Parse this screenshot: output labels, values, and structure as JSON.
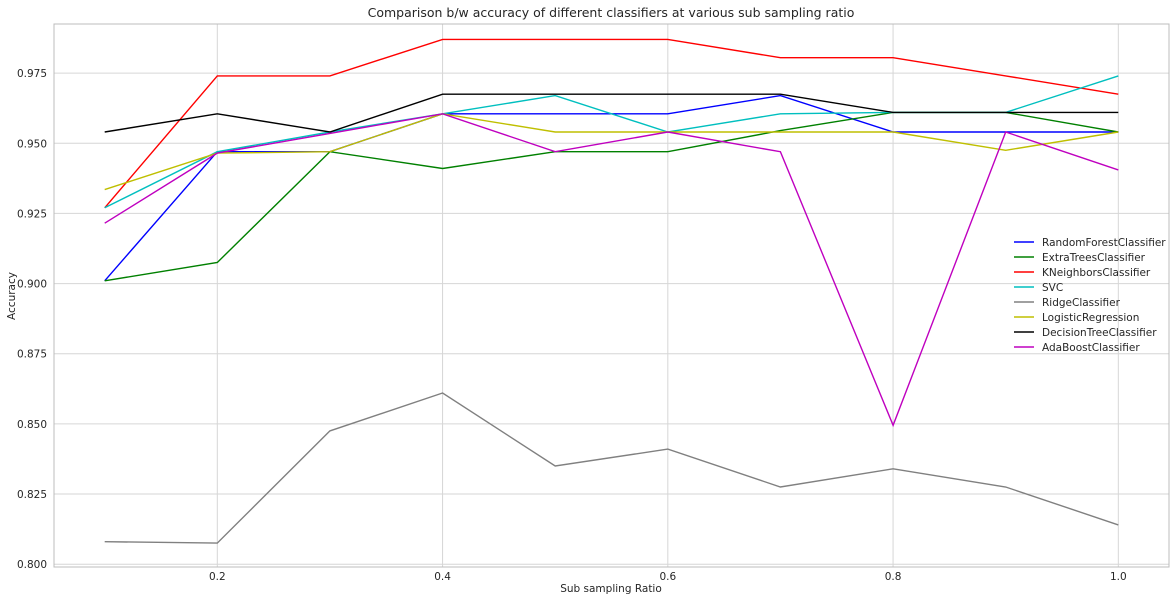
{
  "chart_data": {
    "type": "line",
    "title": "Comparison b/w accuracy of different classifiers at various sub sampling ratio",
    "xlabel": "Sub sampling Ratio",
    "ylabel": "Accuracy",
    "x": [
      0.1,
      0.2,
      0.3,
      0.4,
      0.5,
      0.6,
      0.7,
      0.8,
      0.9,
      1.0
    ],
    "xlim": [
      0.055,
      1.045
    ],
    "ylim": [
      0.799,
      0.9925
    ],
    "xticks": [
      0.2,
      0.4,
      0.6,
      0.8,
      1.0
    ],
    "xtick_labels": [
      "0.2",
      "0.4",
      "0.6",
      "0.8",
      "1.0"
    ],
    "yticks": [
      0.8,
      0.825,
      0.85,
      0.875,
      0.9,
      0.925,
      0.95,
      0.975
    ],
    "ytick_labels": [
      "0.800",
      "0.825",
      "0.850",
      "0.875",
      "0.900",
      "0.925",
      "0.950",
      "0.975"
    ],
    "grid": true,
    "legend_position": "center-right",
    "series": [
      {
        "name": "RandomForestClassifier",
        "color": "#0000ff",
        "values": [
          0.901,
          0.947,
          0.947,
          0.9605,
          0.9605,
          0.9605,
          0.967,
          0.954,
          0.954,
          0.954
        ]
      },
      {
        "name": "ExtraTreesClassifier",
        "color": "#008000",
        "values": [
          0.901,
          0.9075,
          0.947,
          0.941,
          0.947,
          0.947,
          0.9545,
          0.961,
          0.961,
          0.954
        ]
      },
      {
        "name": "KNeighborsClassifier",
        "color": "#ff0000",
        "values": [
          0.927,
          0.974,
          0.974,
          0.987,
          0.987,
          0.987,
          0.9805,
          0.9805,
          0.974,
          0.9675
        ]
      },
      {
        "name": "SVC",
        "color": "#00bfbf",
        "values": [
          0.927,
          0.947,
          0.954,
          0.9605,
          0.967,
          0.954,
          0.9605,
          0.961,
          0.961,
          0.974
        ]
      },
      {
        "name": "RidgeClassifier",
        "color": "#808080",
        "values": [
          0.808,
          0.8075,
          0.8475,
          0.861,
          0.835,
          0.841,
          0.8275,
          0.834,
          0.8275,
          0.814
        ]
      },
      {
        "name": "LogisticRegression",
        "color": "#bfbf00",
        "values": [
          0.9335,
          0.9465,
          0.947,
          0.9605,
          0.954,
          0.954,
          0.954,
          0.954,
          0.9475,
          0.954
        ]
      },
      {
        "name": "DecisionTreeClassifier",
        "color": "#000000",
        "values": [
          0.954,
          0.9605,
          0.954,
          0.9675,
          0.9675,
          0.9675,
          0.9675,
          0.961,
          0.961,
          0.961
        ]
      },
      {
        "name": "AdaBoostClassifier",
        "color": "#bf00bf",
        "values": [
          0.9215,
          0.9465,
          0.9535,
          0.9605,
          0.947,
          0.954,
          0.947,
          0.8495,
          0.954,
          0.9405
        ]
      }
    ]
  }
}
